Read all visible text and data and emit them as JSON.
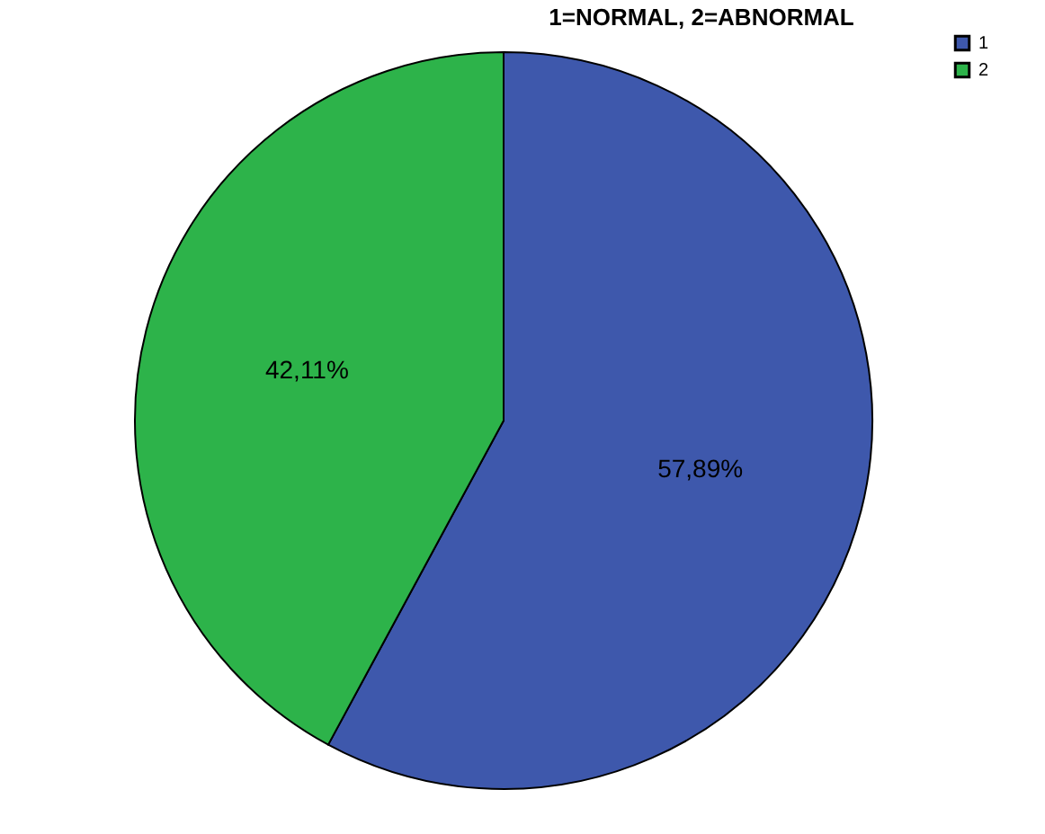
{
  "chart_data": {
    "type": "pie",
    "title": "1=NORMAL, 2=ABNORMAL",
    "categories": [
      "1",
      "2"
    ],
    "values": [
      57.89,
      42.11
    ],
    "colors": [
      "#3e58ac",
      "#2db34a"
    ],
    "value_labels": [
      "57,89%",
      "42,11%"
    ],
    "legend": "top right"
  }
}
